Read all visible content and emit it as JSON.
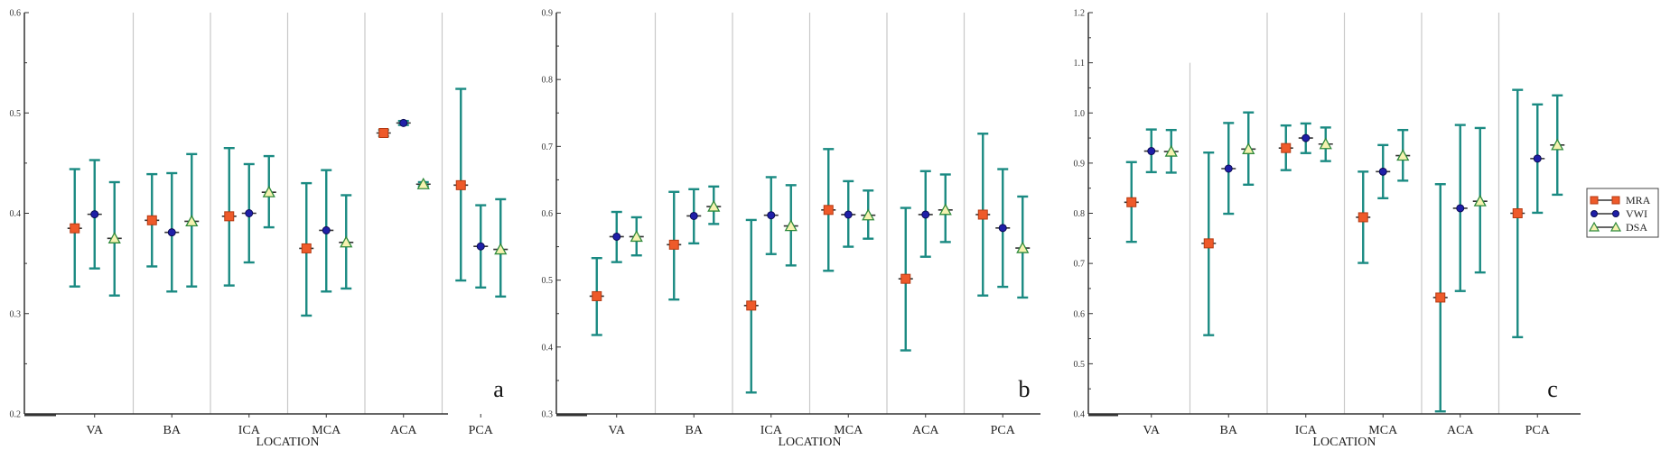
{
  "chart_data": [
    {
      "type": "scatter",
      "title": "",
      "panel_label": "a",
      "xlabel": "LOCATION",
      "ylabel": "",
      "ylim": [
        0.2,
        0.6
      ],
      "yticks": [
        "0.2",
        "0.3",
        "0.4",
        "0.5",
        "0.6"
      ],
      "categories": [
        "VA",
        "BA",
        "ICA",
        "MCA",
        "ACA",
        "PCA"
      ],
      "series": [
        {
          "name": "MRA",
          "values": [
            0.385,
            0.393,
            0.397,
            0.365,
            0.48,
            0.428
          ],
          "lower": [
            0.327,
            0.347,
            0.328,
            0.298,
            0.477,
            0.333
          ],
          "upper": [
            0.444,
            0.439,
            0.465,
            0.43,
            0.483,
            0.524
          ]
        },
        {
          "name": "VWI",
          "values": [
            0.399,
            0.381,
            0.4,
            0.383,
            0.49,
            0.367
          ],
          "lower": [
            0.345,
            0.322,
            0.351,
            0.322,
            0.488,
            0.326
          ],
          "upper": [
            0.453,
            0.44,
            0.449,
            0.443,
            0.492,
            0.408
          ]
        },
        {
          "name": "DSA",
          "values": [
            0.375,
            0.392,
            0.421,
            0.371,
            0.429,
            0.364
          ],
          "lower": [
            0.318,
            0.327,
            0.386,
            0.325,
            0.427,
            0.317
          ],
          "upper": [
            0.431,
            0.459,
            0.457,
            0.418,
            0.431,
            0.414
          ]
        }
      ]
    },
    {
      "type": "scatter",
      "title": "",
      "panel_label": "b",
      "xlabel": "LOCATION",
      "ylabel": "",
      "ylim": [
        0.3,
        0.9
      ],
      "yticks": [
        "0.3",
        "0.4",
        "0.5",
        "0.6",
        "0.7",
        "0.8",
        "0.9"
      ],
      "categories": [
        "VA",
        "BA",
        "ICA",
        "MCA",
        "ACA",
        "PCA"
      ],
      "series": [
        {
          "name": "MRA",
          "values": [
            0.476,
            0.553,
            0.462,
            0.605,
            0.502,
            0.598
          ],
          "lower": [
            0.418,
            0.471,
            0.332,
            0.514,
            0.395,
            0.477
          ],
          "upper": [
            0.533,
            0.632,
            0.59,
            0.696,
            0.608,
            0.719
          ]
        },
        {
          "name": "VWI",
          "values": [
            0.565,
            0.596,
            0.597,
            0.598,
            0.598,
            0.578
          ],
          "lower": [
            0.527,
            0.555,
            0.539,
            0.55,
            0.535,
            0.49
          ],
          "upper": [
            0.602,
            0.636,
            0.654,
            0.648,
            0.663,
            0.666
          ]
        },
        {
          "name": "DSA",
          "values": [
            0.565,
            0.61,
            0.581,
            0.597,
            0.605,
            0.548
          ],
          "lower": [
            0.537,
            0.584,
            0.522,
            0.562,
            0.557,
            0.474
          ],
          "upper": [
            0.594,
            0.64,
            0.642,
            0.634,
            0.658,
            0.625
          ]
        }
      ]
    },
    {
      "type": "scatter",
      "title": "",
      "panel_label": "c",
      "xlabel": "LOCATION",
      "ylabel": "",
      "ylim": [
        0.4,
        1.2
      ],
      "yticks": [
        "0.4",
        "0.5",
        "0.6",
        "0.7",
        "0.8",
        "0.9",
        "1.0",
        "1.1",
        "1.2"
      ],
      "categories": [
        "VA",
        "BA",
        "ICA",
        "MCA",
        "ACA",
        "PCA"
      ],
      "series": [
        {
          "name": "MRA",
          "values": [
            0.822,
            0.74,
            0.93,
            0.792,
            0.632,
            0.8
          ],
          "lower": [
            0.743,
            0.557,
            0.886,
            0.701,
            0.405,
            0.553
          ],
          "upper": [
            0.902,
            0.921,
            0.975,
            0.883,
            0.858,
            1.046
          ]
        },
        {
          "name": "VWI",
          "values": [
            0.924,
            0.889,
            0.95,
            0.883,
            0.81,
            0.909
          ],
          "lower": [
            0.882,
            0.799,
            0.92,
            0.83,
            0.645,
            0.801
          ],
          "upper": [
            0.967,
            0.98,
            0.979,
            0.936,
            0.976,
            1.017
          ]
        },
        {
          "name": "DSA",
          "values": [
            0.923,
            0.928,
            0.938,
            0.915,
            0.824,
            0.936
          ],
          "lower": [
            0.881,
            0.857,
            0.904,
            0.865,
            0.682,
            0.837
          ],
          "upper": [
            0.966,
            1.001,
            0.971,
            0.966,
            0.97,
            1.035
          ]
        }
      ]
    }
  ],
  "legend": {
    "entries": [
      "MRA",
      "VWI",
      "DSA"
    ]
  },
  "colors": {
    "errorbar": "#1a8a82",
    "mra_fill": "#ee5a2a",
    "mra_edge": "#b53a12",
    "vwi_fill": "#1f1fa8",
    "vwi_edge": "#0b0b55",
    "dsa_fill": "#f6f2b0",
    "dsa_edge": "#2f8a3c",
    "separator": "#c8c8c8",
    "axis": "#333333"
  }
}
